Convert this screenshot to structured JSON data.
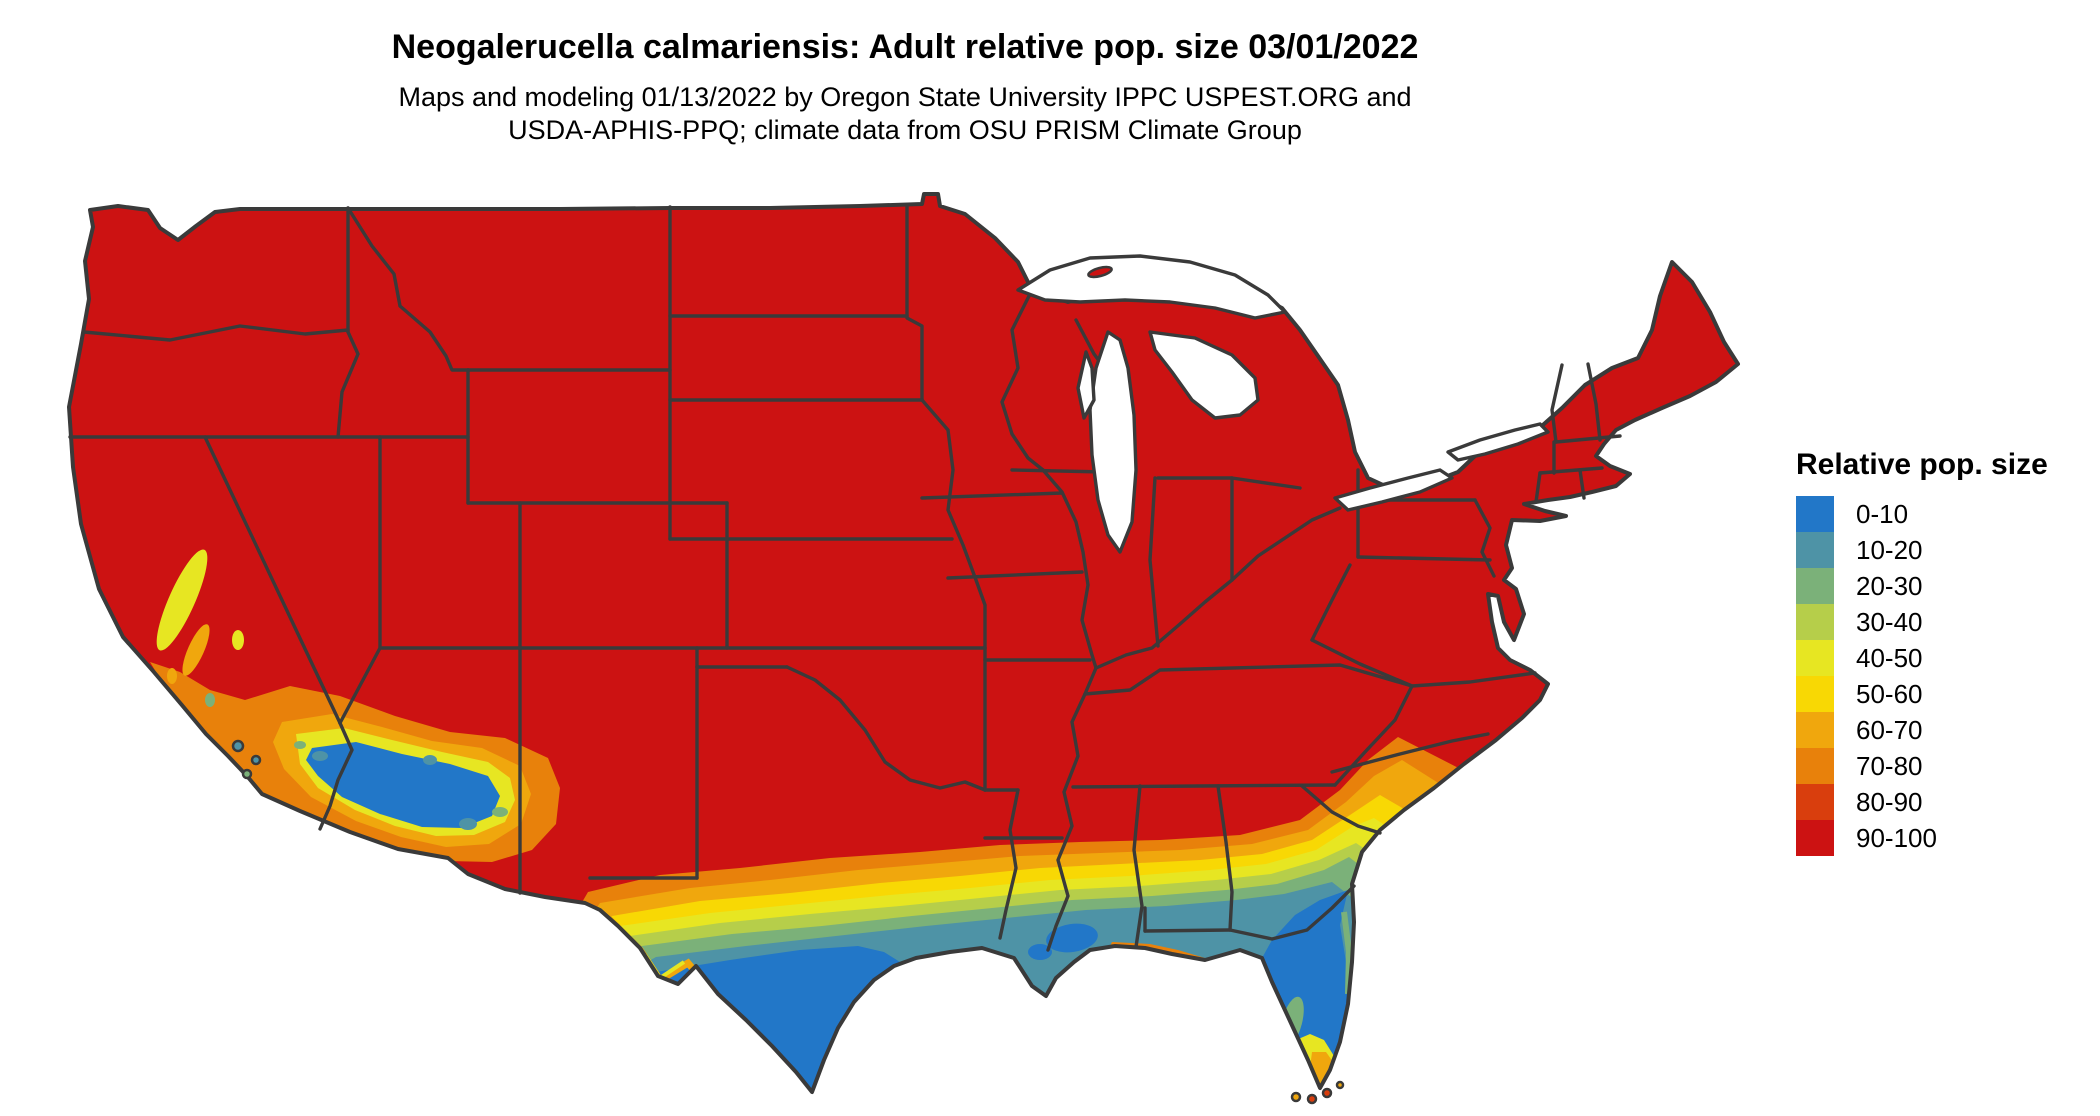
{
  "figure": {
    "title": "Neogalerucella calmariensis: Adult relative pop. size 03/01/2022",
    "subtitle_line1": "Maps and modeling 01/13/2022 by Oregon State University IPPC USPEST.ORG and",
    "subtitle_line2": "USDA-APHIS-PPQ; climate data from OSU PRISM Climate Group"
  },
  "legend": {
    "title": "Relative pop. size",
    "items": [
      {
        "label": "0-10",
        "color": "#2277C8"
      },
      {
        "label": "10-20",
        "color": "#4E93A6"
      },
      {
        "label": "20-30",
        "color": "#7BB179"
      },
      {
        "label": "30-40",
        "color": "#B6CE4A"
      },
      {
        "label": "40-50",
        "color": "#E7E622"
      },
      {
        "label": "50-60",
        "color": "#F8D804"
      },
      {
        "label": "60-70",
        "color": "#F0A70D"
      },
      {
        "label": "70-80",
        "color": "#E8810B"
      },
      {
        "label": "80-90",
        "color": "#D93E0D"
      },
      {
        "label": "90-100",
        "color": "#CC1212"
      }
    ]
  },
  "map": {
    "region": "Contiguous United States",
    "type": "classed raster map of relative population size (0-100)",
    "dominant_class": "90-100",
    "low_value_areas": "southern Texas, peninsular Florida, Gulf Coast of Louisiana, southern California deserts, southwestern Arizona",
    "border_color": "#3A3A3A",
    "background_color": "#FFFFFF"
  }
}
